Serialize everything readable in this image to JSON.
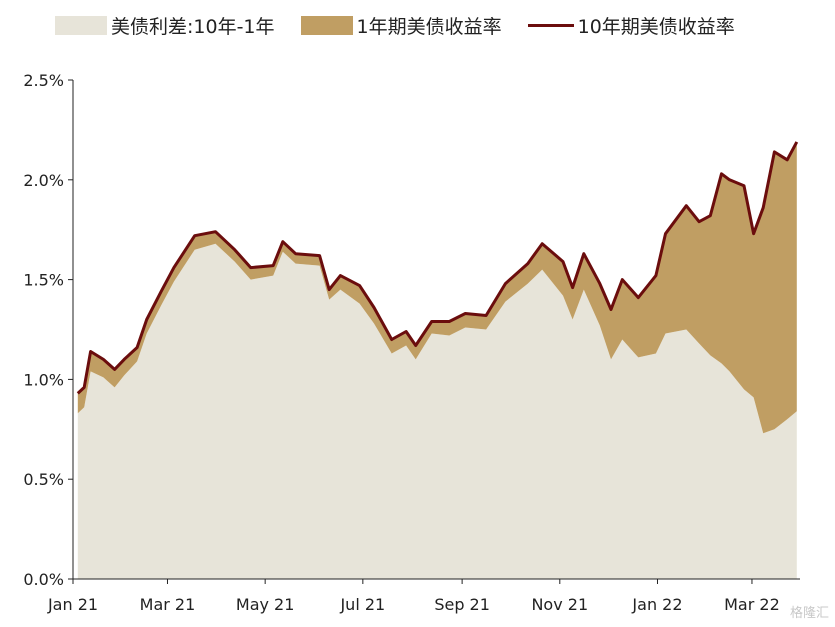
{
  "legend": {
    "spread_label": "美债利差:10年-1年",
    "y1_label": "1年期美债收益率",
    "y10_label": "10年期美债收益率"
  },
  "colors": {
    "spread_fill": "#e7e4d9",
    "y1_fill": "#c09e63",
    "y10_line": "#6b0d0d",
    "axis": "#222222"
  },
  "watermark": "格隆汇",
  "chart_data": {
    "type": "area",
    "title": "",
    "xlabel": "",
    "ylabel": "",
    "x_ticks": [
      "Jan 21",
      "Mar 21",
      "May 21",
      "Jul 21",
      "Sep 21",
      "Nov 21",
      "Jan 22",
      "Mar 22"
    ],
    "y_ticks": [
      "0.0%",
      "0.5%",
      "1.0%",
      "1.5%",
      "2.0%",
      "2.5%"
    ],
    "ylim": [
      0,
      2.5
    ],
    "x_range": [
      "2021-01-01",
      "2022-03-31"
    ],
    "legend_position": "top",
    "grid": false,
    "series": [
      {
        "name": "10年期美债收益率",
        "kind": "line",
        "dates": [
          "2021-01-04",
          "2021-01-08",
          "2021-01-12",
          "2021-01-20",
          "2021-01-27",
          "2021-02-02",
          "2021-02-10",
          "2021-02-16",
          "2021-02-25",
          "2021-03-05",
          "2021-03-18",
          "2021-03-31",
          "2021-04-12",
          "2021-04-22",
          "2021-05-06",
          "2021-05-12",
          "2021-05-20",
          "2021-06-04",
          "2021-06-10",
          "2021-06-17",
          "2021-06-29",
          "2021-07-08",
          "2021-07-19",
          "2021-07-28",
          "2021-08-03",
          "2021-08-13",
          "2021-08-24",
          "2021-09-03",
          "2021-09-16",
          "2021-09-28",
          "2021-10-12",
          "2021-10-21",
          "2021-11-03",
          "2021-11-09",
          "2021-11-16",
          "2021-11-26",
          "2021-12-03",
          "2021-12-10",
          "2021-12-20",
          "2021-12-31",
          "2022-01-06",
          "2022-01-19",
          "2022-01-27",
          "2022-02-03",
          "2022-02-10",
          "2022-02-15",
          "2022-02-24",
          "2022-03-02",
          "2022-03-08",
          "2022-03-15",
          "2022-03-23",
          "2022-03-29"
        ],
        "values": [
          0.93,
          0.96,
          1.14,
          1.1,
          1.05,
          1.1,
          1.16,
          1.3,
          1.44,
          1.56,
          1.72,
          1.74,
          1.65,
          1.56,
          1.57,
          1.69,
          1.63,
          1.62,
          1.45,
          1.52,
          1.47,
          1.36,
          1.2,
          1.24,
          1.17,
          1.29,
          1.29,
          1.33,
          1.32,
          1.48,
          1.58,
          1.68,
          1.59,
          1.46,
          1.63,
          1.48,
          1.35,
          1.5,
          1.41,
          1.52,
          1.73,
          1.87,
          1.79,
          1.82,
          2.03,
          2.0,
          1.97,
          1.73,
          1.86,
          2.14,
          2.1,
          2.19
        ]
      },
      {
        "name": "1年期美债收益率",
        "kind": "area",
        "values": [
          0.1,
          0.1,
          0.1,
          0.09,
          0.09,
          0.08,
          0.07,
          0.07,
          0.07,
          0.07,
          0.07,
          0.06,
          0.06,
          0.06,
          0.05,
          0.05,
          0.05,
          0.05,
          0.05,
          0.07,
          0.09,
          0.08,
          0.07,
          0.07,
          0.07,
          0.06,
          0.07,
          0.07,
          0.07,
          0.09,
          0.1,
          0.13,
          0.17,
          0.16,
          0.18,
          0.21,
          0.25,
          0.3,
          0.3,
          0.39,
          0.5,
          0.62,
          0.61,
          0.7,
          0.95,
          0.96,
          1.02,
          0.82,
          1.13,
          1.39,
          1.3,
          1.35
        ]
      },
      {
        "name": "美债利差:10年-1年",
        "kind": "area",
        "values": [
          0.83,
          0.86,
          1.04,
          1.01,
          0.96,
          1.02,
          1.09,
          1.23,
          1.37,
          1.49,
          1.65,
          1.68,
          1.59,
          1.5,
          1.52,
          1.64,
          1.58,
          1.57,
          1.4,
          1.45,
          1.38,
          1.28,
          1.13,
          1.17,
          1.1,
          1.23,
          1.22,
          1.26,
          1.25,
          1.39,
          1.48,
          1.55,
          1.42,
          1.3,
          1.45,
          1.27,
          1.1,
          1.2,
          1.11,
          1.13,
          1.23,
          1.25,
          1.18,
          1.12,
          1.08,
          1.04,
          0.95,
          0.91,
          0.73,
          0.75,
          0.8,
          0.84
        ]
      }
    ]
  }
}
